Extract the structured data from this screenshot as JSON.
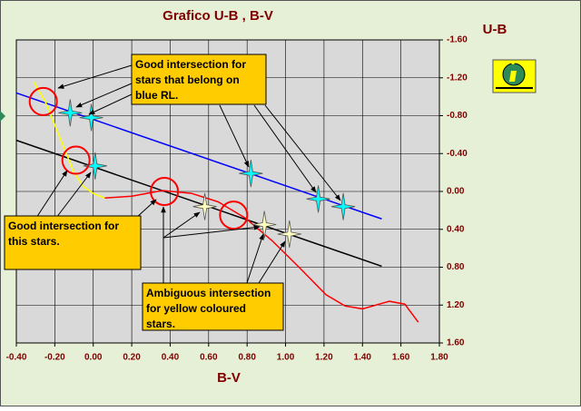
{
  "chart_data": {
    "type": "line",
    "title": "Grafico U-B , B-V",
    "xlabel": "B-V",
    "ylabel": "U-B",
    "xlim": [
      -0.4,
      1.8
    ],
    "ylim": [
      1.6,
      -1.6
    ],
    "xticks": [
      {
        "value": -0.4,
        "label": "-0.40"
      },
      {
        "value": -0.2,
        "label": "-0.20"
      },
      {
        "value": 0,
        "label": "0.00"
      },
      {
        "value": 0.2,
        "label": "0.20"
      },
      {
        "value": 0.4,
        "label": "0.40"
      },
      {
        "value": 0.6,
        "label": "0.60"
      },
      {
        "value": 0.8,
        "label": "0.80"
      },
      {
        "value": 1.0,
        "label": "1.00"
      },
      {
        "value": 1.2,
        "label": "1.20"
      },
      {
        "value": 1.4,
        "label": "1.40"
      },
      {
        "value": 1.6,
        "label": "1.60"
      },
      {
        "value": 1.8,
        "label": "1.80"
      }
    ],
    "yticks": [
      {
        "value": -1.6,
        "label": "-1.60"
      },
      {
        "value": -1.2,
        "label": "-1.20"
      },
      {
        "value": -0.8,
        "label": "-0.80"
      },
      {
        "value": -0.4,
        "label": "-0.40"
      },
      {
        "value": 0,
        "label": "0.00"
      },
      {
        "value": 0.4,
        "label": "0.40"
      },
      {
        "value": 0.8,
        "label": "0.80"
      },
      {
        "value": 1.2,
        "label": "1.20"
      },
      {
        "value": 1.6,
        "label": "1.60"
      }
    ],
    "grid": true,
    "series": [
      {
        "color": "#0000ff",
        "x": [
          -0.4,
          1.5
        ],
        "values": [
          -1.04,
          0.29
        ]
      },
      {
        "color": "#000000",
        "x": [
          -0.4,
          1.5
        ],
        "values": [
          -0.54,
          0.79
        ]
      },
      {
        "color": "#ffff00",
        "x": [
          -0.31,
          -0.25,
          -0.2,
          -0.15,
          -0.1,
          -0.05,
          0.0,
          0.06
        ],
        "values": [
          -1.16,
          -0.95,
          -0.7,
          -0.45,
          -0.2,
          -0.05,
          0.02,
          0.07
        ]
      },
      {
        "color": "#ff0000",
        "x": [
          0.06,
          0.2,
          0.36,
          0.51,
          0.65,
          0.79,
          0.93,
          1.07,
          1.21,
          1.31,
          1.4,
          1.54,
          1.62,
          1.69
        ],
        "values": [
          0.07,
          0.05,
          -0.01,
          0.02,
          0.11,
          0.28,
          0.52,
          0.8,
          1.09,
          1.21,
          1.24,
          1.16,
          1.19,
          1.38
        ]
      },
      {
        "color": "#00ffff",
        "marker": "star",
        "x": [
          -0.12,
          -0.01,
          0.01,
          0.82,
          1.17,
          1.3
        ],
        "values": [
          -0.83,
          -0.78,
          -0.27,
          -0.19,
          0.08,
          0.16
        ]
      },
      {
        "color": "#ffffc0",
        "marker": "star",
        "x": [
          0.58,
          0.89,
          1.02
        ],
        "values": [
          0.16,
          0.35,
          0.45
        ]
      },
      {
        "color": "#ff0000",
        "marker": "circle",
        "x": [
          -0.26,
          -0.09,
          0.37,
          0.73
        ],
        "values": [
          -0.95,
          -0.33,
          0.0,
          0.25
        ]
      }
    ],
    "annotations": [
      {
        "text": [
          "Good intersection for",
          "stars that belong on",
          "blue RL."
        ]
      },
      {
        "text": [
          "Good intersection for",
          "this stars."
        ]
      },
      {
        "text": [
          "Ambiguous intersection",
          "for yellow coloured",
          "stars."
        ]
      }
    ]
  }
}
